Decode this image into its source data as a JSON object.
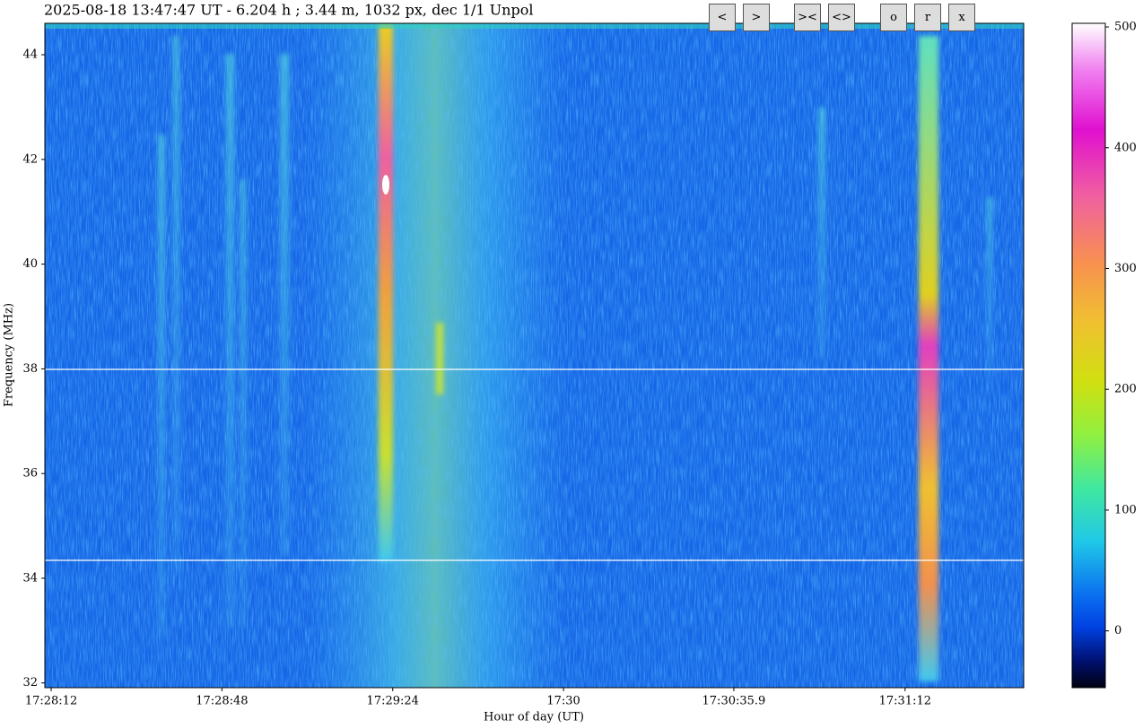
{
  "chart_data": {
    "type": "heatmap",
    "title": "2025-08-18 13:47:47 UT - 6.204 h ;    3.44 m, 1032 px, dec 1/1 Unpol",
    "x_label": "Hour of day (UT)",
    "y_label": "Frequency (MHz)",
    "xlim": [
      62890.67,
      63097.0
    ],
    "xticks": [
      {
        "value": 62892,
        "label": "17:28:12"
      },
      {
        "value": 62928,
        "label": "17:28:48"
      },
      {
        "value": 62964,
        "label": "17:29:24"
      },
      {
        "value": 63000,
        "label": "17:30"
      },
      {
        "value": 63035.9,
        "label": "17:30:35.9"
      },
      {
        "value": 63072,
        "label": "17:31:12"
      }
    ],
    "ylim": [
      31.91,
      44.6
    ],
    "yticks": [
      32,
      34,
      36,
      38,
      40,
      42,
      44
    ],
    "clim": [
      -47,
      503
    ],
    "cticks": [
      0,
      100,
      200,
      300,
      400,
      500
    ],
    "buttons": [
      "<",
      ">",
      "><",
      "<>",
      "o",
      "r",
      "x"
    ]
  }
}
